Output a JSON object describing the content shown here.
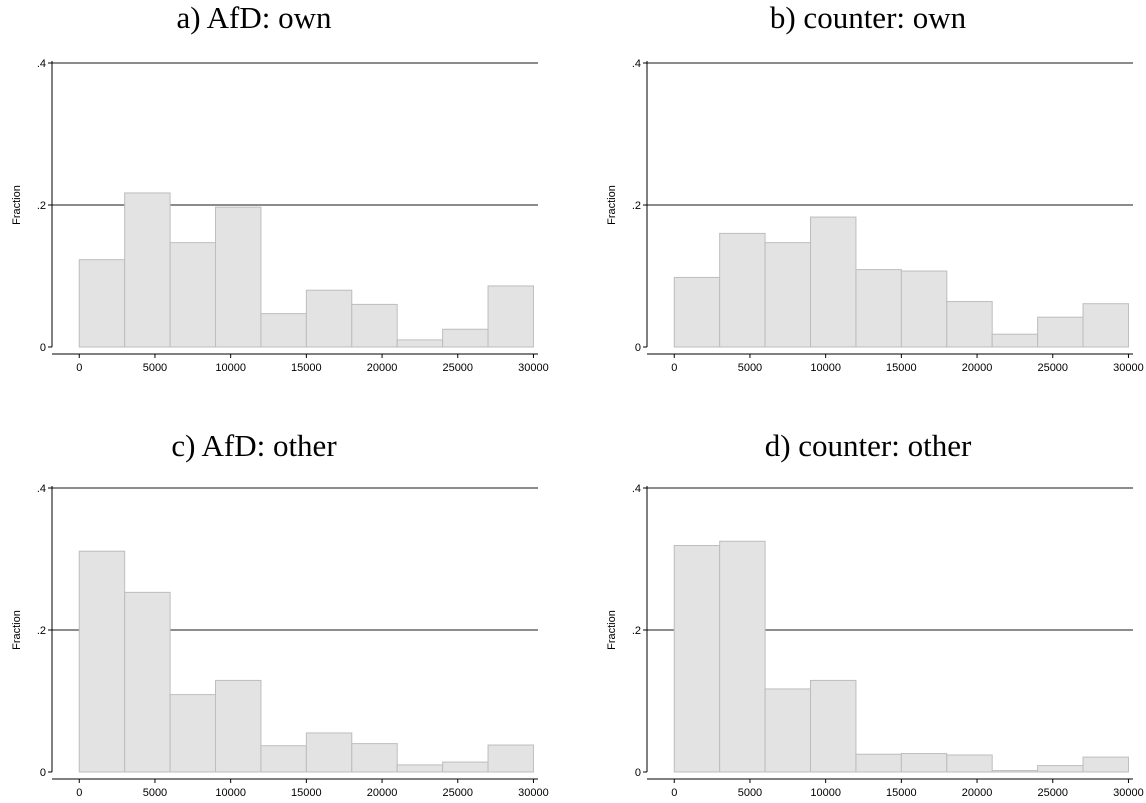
{
  "chart_data": [
    {
      "type": "bar",
      "title": "a) AfD: own",
      "ylabel": "Fraction",
      "xlabel": "",
      "bin_width": 3000,
      "x_start": 0,
      "values": [
        0.123,
        0.217,
        0.147,
        0.197,
        0.047,
        0.08,
        0.06,
        0.01,
        0.025,
        0.086
      ],
      "xlim": [
        -1800,
        30300
      ],
      "ylim": [
        0,
        0.4
      ],
      "xticks": [
        0,
        5000,
        10000,
        15000,
        20000,
        25000,
        30000
      ],
      "xtick_labels": [
        "0",
        "5000",
        "10000",
        "15000",
        "20000",
        "25000",
        "30000"
      ],
      "yticks": [
        0,
        0.2,
        0.4
      ],
      "ytick_labels": [
        "0",
        ".2",
        ".4"
      ],
      "grid": true
    },
    {
      "type": "bar",
      "title": "b) counter: own",
      "ylabel": "Fraction",
      "xlabel": "",
      "bin_width": 3000,
      "x_start": 0,
      "values": [
        0.098,
        0.16,
        0.147,
        0.183,
        0.109,
        0.107,
        0.064,
        0.018,
        0.042,
        0.061
      ],
      "xlim": [
        -1800,
        30300
      ],
      "ylim": [
        0,
        0.4
      ],
      "xticks": [
        0,
        5000,
        10000,
        15000,
        20000,
        25000,
        30000
      ],
      "xtick_labels": [
        "0",
        "5000",
        "10000",
        "15000",
        "20000",
        "25000",
        "30000"
      ],
      "yticks": [
        0,
        0.2,
        0.4
      ],
      "ytick_labels": [
        "0",
        ".2",
        ".4"
      ],
      "grid": true
    },
    {
      "type": "bar",
      "title": "c) AfD: other",
      "ylabel": "Fraction",
      "xlabel": "",
      "bin_width": 3000,
      "x_start": 0,
      "values": [
        0.311,
        0.253,
        0.109,
        0.129,
        0.037,
        0.055,
        0.04,
        0.01,
        0.014,
        0.038
      ],
      "xlim": [
        -1800,
        30300
      ],
      "ylim": [
        0,
        0.4
      ],
      "xticks": [
        0,
        5000,
        10000,
        15000,
        20000,
        25000,
        30000
      ],
      "xtick_labels": [
        "0",
        "5000",
        "10000",
        "15000",
        "20000",
        "25000",
        "30000"
      ],
      "yticks": [
        0,
        0.2,
        0.4
      ],
      "ytick_labels": [
        "0",
        ".2",
        ".4"
      ],
      "grid": true
    },
    {
      "type": "bar",
      "title": "d) counter: other",
      "ylabel": "Fraction",
      "xlabel": "",
      "bin_width": 3000,
      "x_start": 0,
      "values": [
        0.319,
        0.325,
        0.117,
        0.129,
        0.025,
        0.026,
        0.024,
        0.002,
        0.009,
        0.021
      ],
      "xlim": [
        -1800,
        30300
      ],
      "ylim": [
        0,
        0.4
      ],
      "xticks": [
        0,
        5000,
        10000,
        15000,
        20000,
        25000,
        30000
      ],
      "xtick_labels": [
        "0",
        "5000",
        "10000",
        "15000",
        "20000",
        "25000",
        "30000"
      ],
      "yticks": [
        0,
        0.2,
        0.4
      ],
      "ytick_labels": [
        "0",
        ".2",
        ".4"
      ],
      "grid": true
    }
  ],
  "colors": {
    "bar_fill": "#e3e3e3",
    "bar_edge": "#bdbdbd",
    "grid": "#1a1a1a"
  }
}
